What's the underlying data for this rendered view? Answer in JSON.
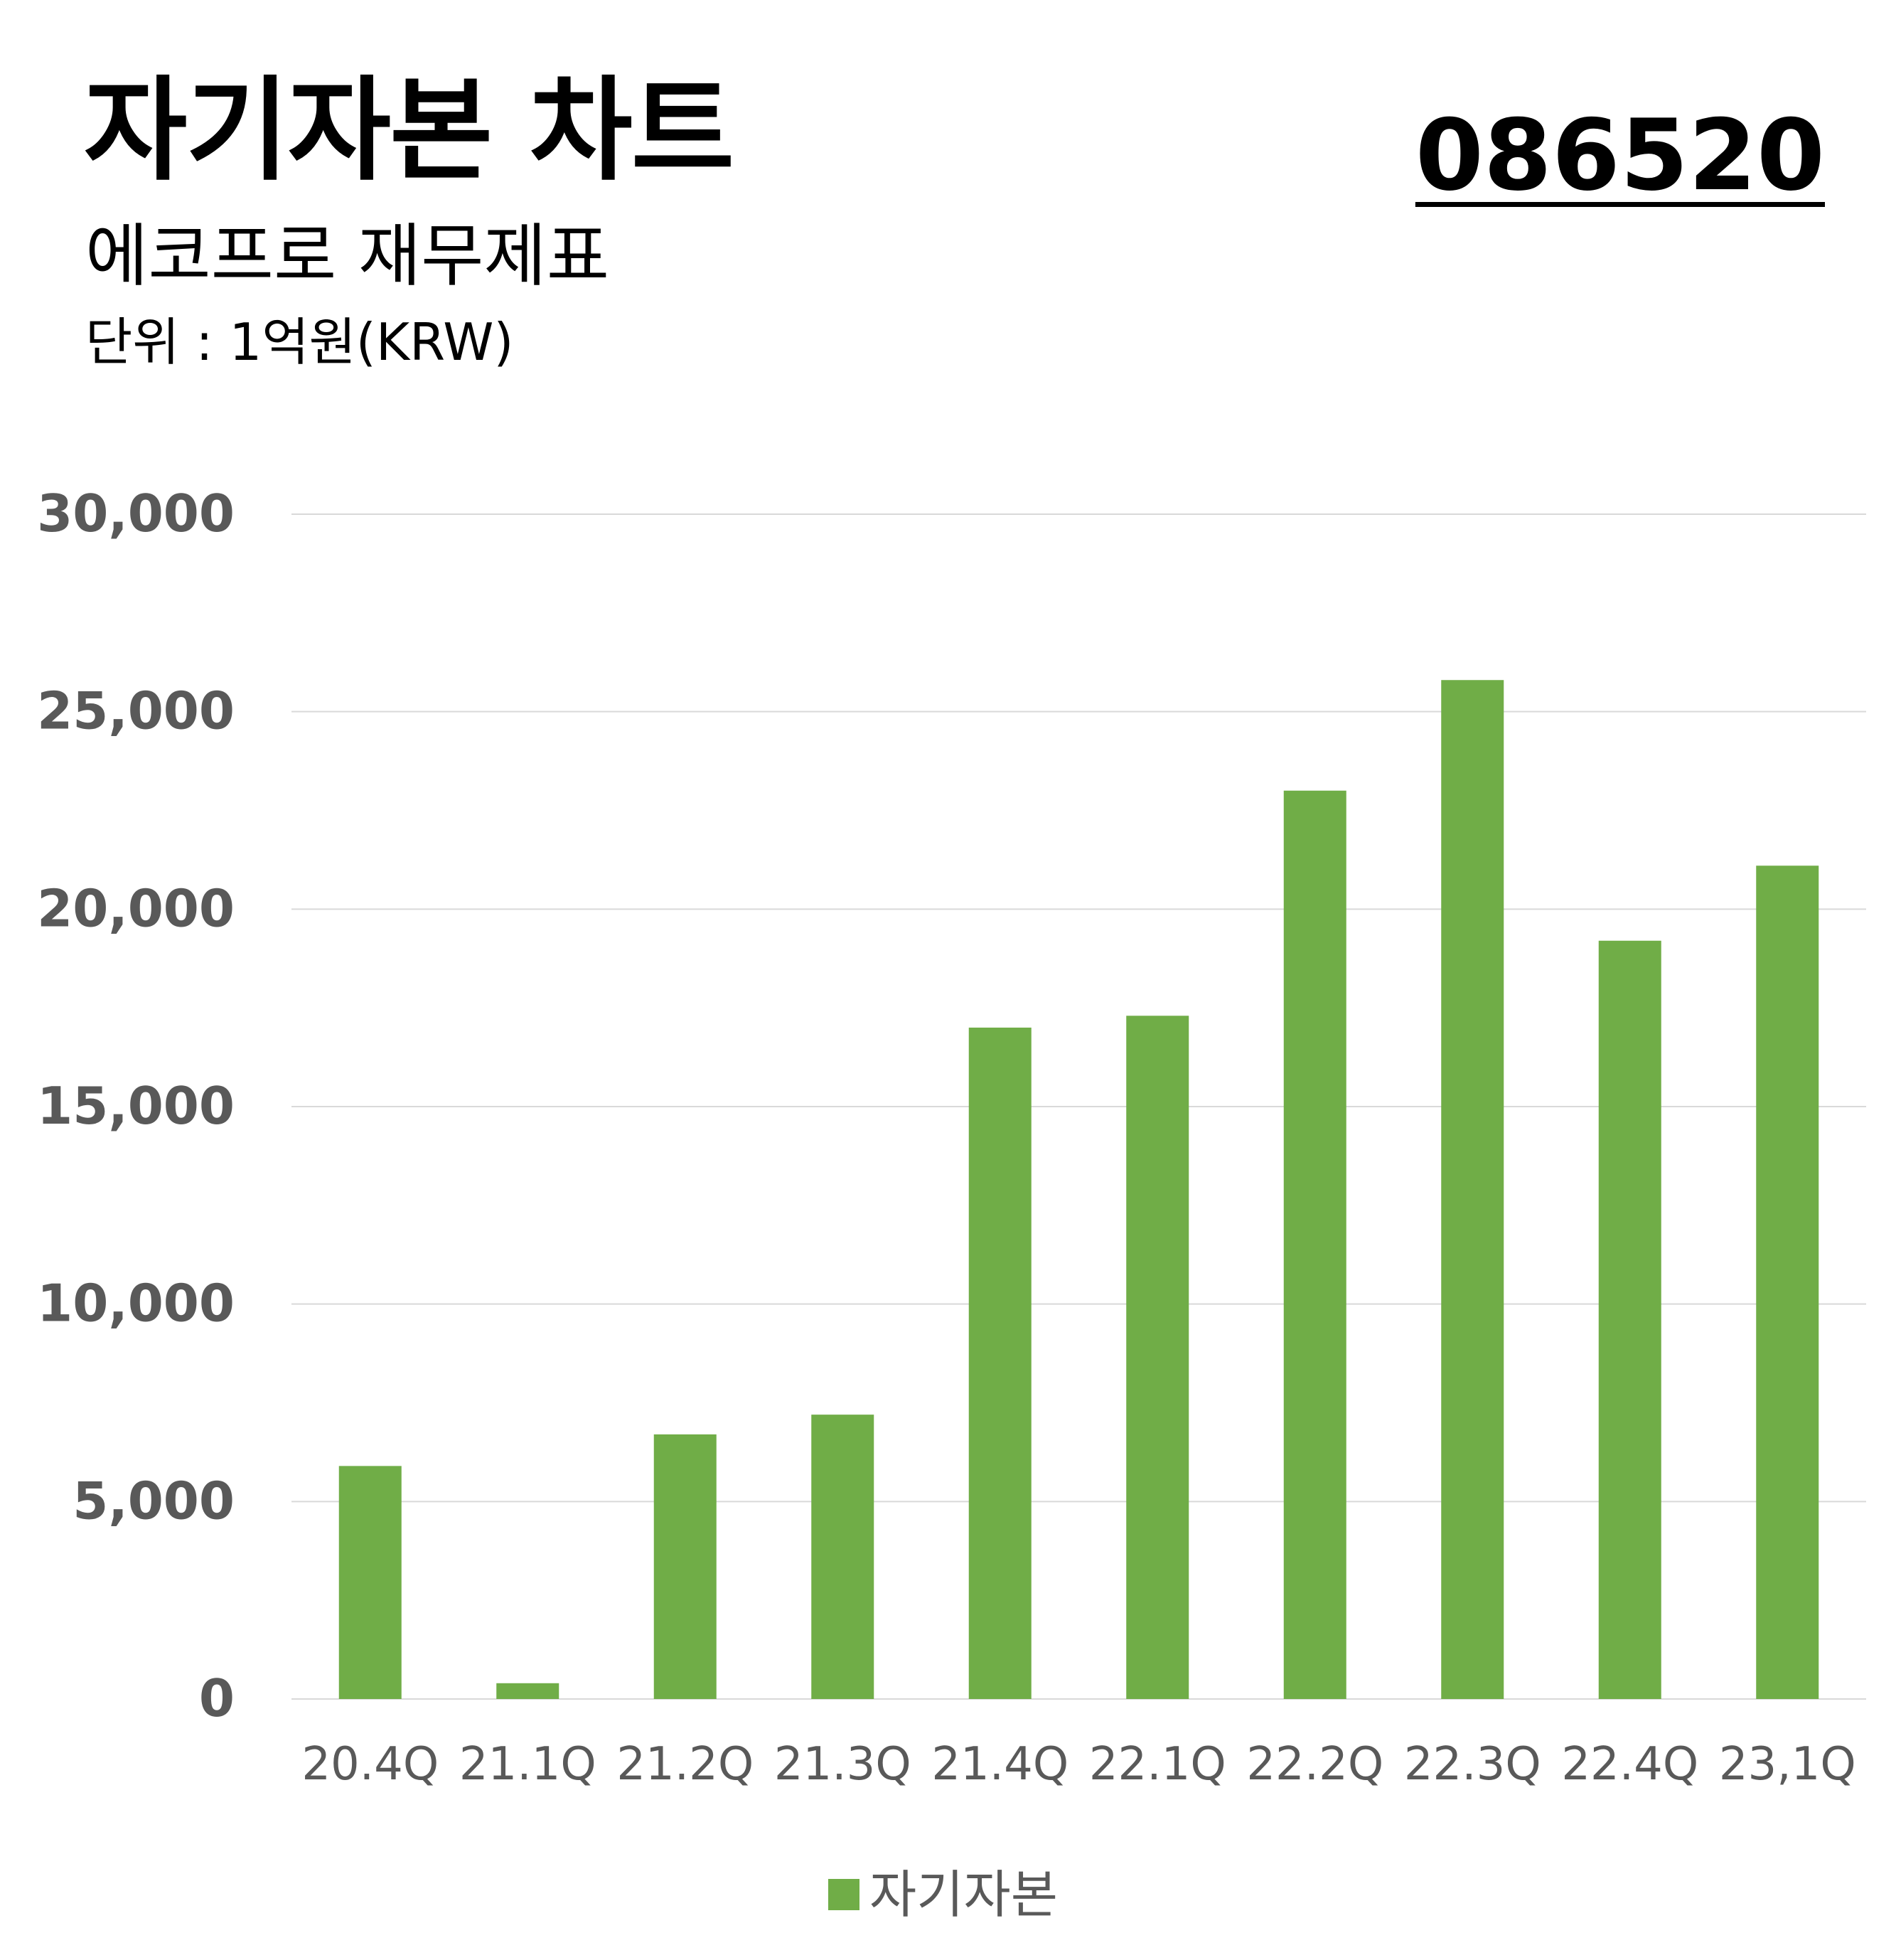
{
  "header": {
    "title": "자기자본 차트",
    "subtitle": "에코프로 재무제표",
    "unit": "단위 : 1억원(KRW)",
    "stock_code": "086520"
  },
  "chart_data": {
    "type": "bar",
    "categories": [
      "20.4Q",
      "21.1Q",
      "21.2Q",
      "21.3Q",
      "21.4Q",
      "22.1Q",
      "22.2Q",
      "22.3Q",
      "22.4Q",
      "23,1Q"
    ],
    "series": [
      {
        "name": "자기자본",
        "values": [
          5900,
          400,
          6700,
          7200,
          17000,
          17300,
          23000,
          25800,
          19200,
          21100
        ]
      }
    ],
    "ylim": [
      0,
      30000
    ],
    "yticks": [
      "0",
      "5,000",
      "10,000",
      "15,000",
      "20,000",
      "25,000",
      "30,000"
    ],
    "grid": true,
    "legend_position": "bottom",
    "colors": {
      "bar": "#70ad47",
      "grid": "#d9d9d9",
      "tick_text": "#595959"
    }
  }
}
